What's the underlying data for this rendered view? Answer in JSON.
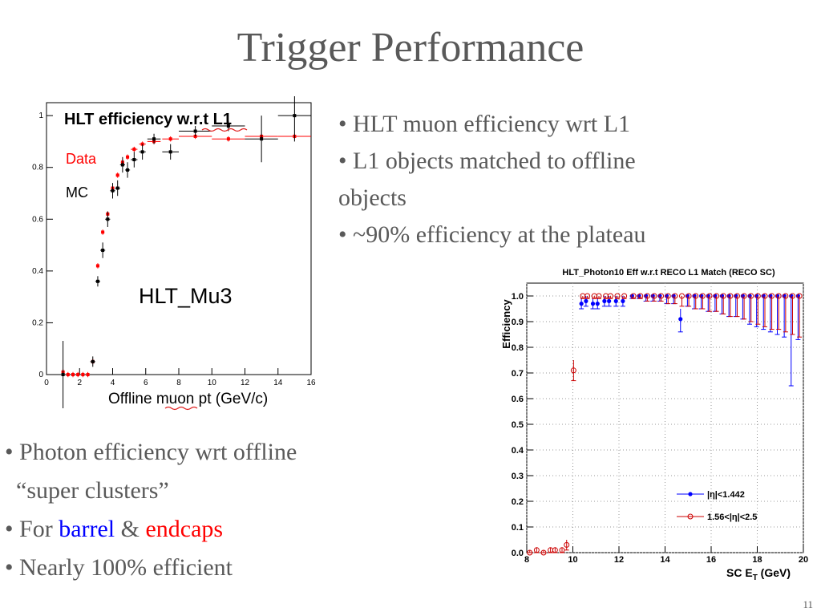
{
  "slide": {
    "title": "Trigger Performance",
    "page_number": "11",
    "bullets_top": [
      "• HLT muon efficiency wrt L1",
      "• L1 objects matched to offline",
      "objects",
      "• ~90% efficiency at the plateau"
    ],
    "bullets_bottom": {
      "line1": "• Photon efficiency wrt offline",
      "line2": "“super clusters”",
      "line3_prefix": "• For ",
      "line3_barrel": "barrel",
      "line3_amp": " & ",
      "line3_endcaps": "endcaps",
      "line4": "• Nearly 100% efficient"
    }
  },
  "chart_data": [
    {
      "type": "scatter",
      "title": "HLT efficiency w.r.t L1",
      "annotation": "HLT_Mu3",
      "xlabel": "Offline muon pt (GeV/c)",
      "ylabel": "",
      "xlim": [
        0,
        16
      ],
      "ylim": [
        0,
        1.05
      ],
      "xticks": [
        0,
        2,
        4,
        6,
        8,
        10,
        12,
        14,
        16
      ],
      "yticks": [
        0,
        0.2,
        0.4,
        0.6,
        0.8,
        1
      ],
      "legend_position": "top-left",
      "colors": {
        "data": "#ff0000",
        "mc": "#000000"
      },
      "series": [
        {
          "name": "Data",
          "points": [
            {
              "x": 1.0,
              "y": 0.01,
              "ex": 0.1,
              "ey": 0.01
            },
            {
              "x": 1.3,
              "y": 0.0,
              "ex": 0.1,
              "ey": 0.01
            },
            {
              "x": 1.6,
              "y": 0.0,
              "ex": 0.1,
              "ey": 0.01
            },
            {
              "x": 1.9,
              "y": 0.0,
              "ex": 0.1,
              "ey": 0.01
            },
            {
              "x": 2.2,
              "y": 0.0,
              "ex": 0.1,
              "ey": 0.01
            },
            {
              "x": 2.5,
              "y": 0.0,
              "ex": 0.1,
              "ey": 0.01
            },
            {
              "x": 2.8,
              "y": 0.05,
              "ex": 0.1,
              "ey": 0.01
            },
            {
              "x": 3.1,
              "y": 0.42,
              "ex": 0.1,
              "ey": 0.01
            },
            {
              "x": 3.4,
              "y": 0.55,
              "ex": 0.1,
              "ey": 0.01
            },
            {
              "x": 3.7,
              "y": 0.62,
              "ex": 0.1,
              "ey": 0.01
            },
            {
              "x": 4.0,
              "y": 0.72,
              "ex": 0.1,
              "ey": 0.01
            },
            {
              "x": 4.3,
              "y": 0.77,
              "ex": 0.1,
              "ey": 0.01
            },
            {
              "x": 4.6,
              "y": 0.82,
              "ex": 0.1,
              "ey": 0.01
            },
            {
              "x": 4.9,
              "y": 0.84,
              "ex": 0.1,
              "ey": 0.01
            },
            {
              "x": 5.3,
              "y": 0.87,
              "ex": 0.2,
              "ey": 0.01
            },
            {
              "x": 5.8,
              "y": 0.89,
              "ex": 0.2,
              "ey": 0.01
            },
            {
              "x": 6.5,
              "y": 0.9,
              "ex": 0.4,
              "ey": 0.01
            },
            {
              "x": 7.5,
              "y": 0.91,
              "ex": 0.5,
              "ey": 0.01
            },
            {
              "x": 9.0,
              "y": 0.92,
              "ex": 1.0,
              "ey": 0.01
            },
            {
              "x": 11.0,
              "y": 0.91,
              "ex": 1.0,
              "ey": 0.01
            },
            {
              "x": 13.0,
              "y": 0.92,
              "ex": 1.0,
              "ey": 0.01
            },
            {
              "x": 15.0,
              "y": 0.92,
              "ex": 1.0,
              "ey": 0.01
            }
          ]
        },
        {
          "name": "MC",
          "points": [
            {
              "x": 1.0,
              "y": 0.0,
              "ex": 0.15,
              "ey": 0.13
            },
            {
              "x": 2.8,
              "y": 0.05,
              "ex": 0.15,
              "ey": 0.02
            },
            {
              "x": 3.1,
              "y": 0.36,
              "ex": 0.15,
              "ey": 0.02
            },
            {
              "x": 3.4,
              "y": 0.48,
              "ex": 0.15,
              "ey": 0.03
            },
            {
              "x": 3.7,
              "y": 0.6,
              "ex": 0.15,
              "ey": 0.03
            },
            {
              "x": 4.0,
              "y": 0.71,
              "ex": 0.15,
              "ey": 0.03
            },
            {
              "x": 4.3,
              "y": 0.72,
              "ex": 0.15,
              "ey": 0.03
            },
            {
              "x": 4.6,
              "y": 0.81,
              "ex": 0.15,
              "ey": 0.03
            },
            {
              "x": 4.9,
              "y": 0.79,
              "ex": 0.15,
              "ey": 0.03
            },
            {
              "x": 5.3,
              "y": 0.83,
              "ex": 0.2,
              "ey": 0.03
            },
            {
              "x": 5.8,
              "y": 0.86,
              "ex": 0.2,
              "ey": 0.03
            },
            {
              "x": 6.5,
              "y": 0.91,
              "ex": 0.4,
              "ey": 0.02
            },
            {
              "x": 7.5,
              "y": 0.86,
              "ex": 0.5,
              "ey": 0.03
            },
            {
              "x": 9.0,
              "y": 0.94,
              "ex": 1.0,
              "ey": 0.02
            },
            {
              "x": 11.0,
              "y": 0.96,
              "ex": 1.0,
              "ey": 0.02
            },
            {
              "x": 13.0,
              "y": 0.91,
              "ex": 1.0,
              "ey": 0.09
            },
            {
              "x": 15.0,
              "y": 1.0,
              "ex": 1.0,
              "ey": 0.1
            }
          ]
        }
      ]
    },
    {
      "type": "scatter",
      "title": "HLT_Photon10 Eff w.r.t RECO L1 Match (RECO SC)",
      "xlabel": "SC E_T (GeV)",
      "ylabel": "Efficiency",
      "xlim": [
        8,
        20
      ],
      "ylim": [
        0,
        1.05
      ],
      "xticks": [
        8,
        10,
        12,
        14,
        16,
        18,
        20
      ],
      "yticks": [
        0,
        0.1,
        0.2,
        0.3,
        0.4,
        0.5,
        0.6,
        0.7,
        0.8,
        0.9,
        1.0
      ],
      "ytick_labels": [
        "0.0",
        "0.1",
        "0.2",
        "0.3",
        "0.4",
        "0.5",
        "0.6",
        "0.7",
        "0.8",
        "0.9",
        "1.0"
      ],
      "grid": true,
      "legend_position": "bottom-right",
      "colors": {
        "barrel": "#0000ff",
        "endcaps": "#cc0000"
      },
      "series": [
        {
          "name": "|η|<1.442",
          "points": [
            {
              "x": 10.4,
              "y": 0.97,
              "eyl": 0.02,
              "eyh": 0.02
            },
            {
              "x": 10.6,
              "y": 0.98,
              "eyl": 0.02,
              "eyh": 0.02
            },
            {
              "x": 10.9,
              "y": 0.97,
              "eyl": 0.02,
              "eyh": 0.02
            },
            {
              "x": 11.1,
              "y": 0.97,
              "eyl": 0.02,
              "eyh": 0.02
            },
            {
              "x": 11.4,
              "y": 0.98,
              "eyl": 0.02,
              "eyh": 0.02
            },
            {
              "x": 11.6,
              "y": 0.98,
              "eyl": 0.02,
              "eyh": 0.02
            },
            {
              "x": 11.9,
              "y": 0.98,
              "eyl": 0.02,
              "eyh": 0.02
            },
            {
              "x": 12.2,
              "y": 0.98,
              "eyl": 0.02,
              "eyh": 0.02
            },
            {
              "x": 12.6,
              "y": 1.0,
              "eyl": 0.01,
              "eyh": 0.0
            },
            {
              "x": 12.9,
              "y": 1.0,
              "eyl": 0.01,
              "eyh": 0.0
            },
            {
              "x": 13.2,
              "y": 1.0,
              "eyl": 0.02,
              "eyh": 0.0
            },
            {
              "x": 13.5,
              "y": 1.0,
              "eyl": 0.02,
              "eyh": 0.0
            },
            {
              "x": 13.8,
              "y": 1.0,
              "eyl": 0.02,
              "eyh": 0.0
            },
            {
              "x": 14.1,
              "y": 1.0,
              "eyl": 0.03,
              "eyh": 0.0
            },
            {
              "x": 14.4,
              "y": 1.0,
              "eyl": 0.03,
              "eyh": 0.0
            },
            {
              "x": 14.7,
              "y": 0.91,
              "eyl": 0.05,
              "eyh": 0.04
            },
            {
              "x": 15.0,
              "y": 1.0,
              "eyl": 0.04,
              "eyh": 0.0
            },
            {
              "x": 15.3,
              "y": 1.0,
              "eyl": 0.05,
              "eyh": 0.0
            },
            {
              "x": 15.6,
              "y": 1.0,
              "eyl": 0.05,
              "eyh": 0.0
            },
            {
              "x": 15.9,
              "y": 1.0,
              "eyl": 0.06,
              "eyh": 0.0
            },
            {
              "x": 16.2,
              "y": 1.0,
              "eyl": 0.06,
              "eyh": 0.0
            },
            {
              "x": 16.5,
              "y": 1.0,
              "eyl": 0.07,
              "eyh": 0.0
            },
            {
              "x": 16.8,
              "y": 1.0,
              "eyl": 0.08,
              "eyh": 0.0
            },
            {
              "x": 17.1,
              "y": 1.0,
              "eyl": 0.08,
              "eyh": 0.0
            },
            {
              "x": 17.4,
              "y": 1.0,
              "eyl": 0.09,
              "eyh": 0.0
            },
            {
              "x": 17.7,
              "y": 1.0,
              "eyl": 0.11,
              "eyh": 0.0
            },
            {
              "x": 18.0,
              "y": 1.0,
              "eyl": 0.12,
              "eyh": 0.0
            },
            {
              "x": 18.3,
              "y": 1.0,
              "eyl": 0.13,
              "eyh": 0.0
            },
            {
              "x": 18.6,
              "y": 1.0,
              "eyl": 0.14,
              "eyh": 0.0
            },
            {
              "x": 18.9,
              "y": 1.0,
              "eyl": 0.15,
              "eyh": 0.0
            },
            {
              "x": 19.2,
              "y": 1.0,
              "eyl": 0.16,
              "eyh": 0.0
            },
            {
              "x": 19.5,
              "y": 1.0,
              "eyl": 0.35,
              "eyh": 0.0
            },
            {
              "x": 19.8,
              "y": 1.0,
              "eyl": 0.17,
              "eyh": 0.0
            }
          ]
        },
        {
          "name": "1.56<|η|<2.5",
          "points": [
            {
              "x": 8.1,
              "y": 0.0,
              "eyl": 0.0,
              "eyh": 0.01
            },
            {
              "x": 8.4,
              "y": 0.01,
              "eyl": 0.01,
              "eyh": 0.01
            },
            {
              "x": 8.7,
              "y": 0.0,
              "eyl": 0.0,
              "eyh": 0.01
            },
            {
              "x": 9.0,
              "y": 0.01,
              "eyl": 0.01,
              "eyh": 0.01
            },
            {
              "x": 9.2,
              "y": 0.01,
              "eyl": 0.01,
              "eyh": 0.01
            },
            {
              "x": 9.5,
              "y": 0.01,
              "eyl": 0.01,
              "eyh": 0.01
            },
            {
              "x": 9.7,
              "y": 0.03,
              "eyl": 0.02,
              "eyh": 0.02
            },
            {
              "x": 10.0,
              "y": 0.71,
              "eyl": 0.04,
              "eyh": 0.04
            },
            {
              "x": 10.4,
              "y": 1.0,
              "eyl": 0.01,
              "eyh": 0.0
            },
            {
              "x": 10.6,
              "y": 1.0,
              "eyl": 0.01,
              "eyh": 0.0
            },
            {
              "x": 10.9,
              "y": 1.0,
              "eyl": 0.01,
              "eyh": 0.0
            },
            {
              "x": 11.1,
              "y": 1.0,
              "eyl": 0.01,
              "eyh": 0.0
            },
            {
              "x": 11.4,
              "y": 1.0,
              "eyl": 0.01,
              "eyh": 0.0
            },
            {
              "x": 11.6,
              "y": 1.0,
              "eyl": 0.01,
              "eyh": 0.0
            },
            {
              "x": 11.9,
              "y": 1.0,
              "eyl": 0.01,
              "eyh": 0.0
            },
            {
              "x": 12.2,
              "y": 1.0,
              "eyl": 0.01,
              "eyh": 0.0
            },
            {
              "x": 12.6,
              "y": 1.0,
              "eyl": 0.01,
              "eyh": 0.0
            },
            {
              "x": 12.9,
              "y": 1.0,
              "eyl": 0.01,
              "eyh": 0.0
            },
            {
              "x": 13.2,
              "y": 1.0,
              "eyl": 0.02,
              "eyh": 0.0
            },
            {
              "x": 13.5,
              "y": 1.0,
              "eyl": 0.02,
              "eyh": 0.0
            },
            {
              "x": 13.8,
              "y": 1.0,
              "eyl": 0.02,
              "eyh": 0.0
            },
            {
              "x": 14.1,
              "y": 1.0,
              "eyl": 0.03,
              "eyh": 0.0
            },
            {
              "x": 14.4,
              "y": 1.0,
              "eyl": 0.03,
              "eyh": 0.0
            },
            {
              "x": 14.7,
              "y": 1.0,
              "eyl": 0.04,
              "eyh": 0.0
            },
            {
              "x": 15.0,
              "y": 1.0,
              "eyl": 0.04,
              "eyh": 0.0
            },
            {
              "x": 15.3,
              "y": 1.0,
              "eyl": 0.05,
              "eyh": 0.0
            },
            {
              "x": 15.6,
              "y": 1.0,
              "eyl": 0.05,
              "eyh": 0.0
            },
            {
              "x": 15.9,
              "y": 1.0,
              "eyl": 0.06,
              "eyh": 0.0
            },
            {
              "x": 16.2,
              "y": 1.0,
              "eyl": 0.06,
              "eyh": 0.0
            },
            {
              "x": 16.5,
              "y": 1.0,
              "eyl": 0.07,
              "eyh": 0.0
            },
            {
              "x": 16.8,
              "y": 1.0,
              "eyl": 0.08,
              "eyh": 0.0
            },
            {
              "x": 17.1,
              "y": 1.0,
              "eyl": 0.08,
              "eyh": 0.0
            },
            {
              "x": 17.4,
              "y": 1.0,
              "eyl": 0.09,
              "eyh": 0.0
            },
            {
              "x": 17.7,
              "y": 1.0,
              "eyl": 0.1,
              "eyh": 0.0
            },
            {
              "x": 18.0,
              "y": 1.0,
              "eyl": 0.11,
              "eyh": 0.0
            },
            {
              "x": 18.3,
              "y": 1.0,
              "eyl": 0.12,
              "eyh": 0.0
            },
            {
              "x": 18.6,
              "y": 1.0,
              "eyl": 0.13,
              "eyh": 0.0
            },
            {
              "x": 18.9,
              "y": 1.0,
              "eyl": 0.13,
              "eyh": 0.0
            },
            {
              "x": 19.2,
              "y": 1.0,
              "eyl": 0.14,
              "eyh": 0.0
            },
            {
              "x": 19.5,
              "y": 1.0,
              "eyl": 0.15,
              "eyh": 0.0
            },
            {
              "x": 19.8,
              "y": 1.0,
              "eyl": 0.16,
              "eyh": 0.0
            }
          ]
        }
      ]
    }
  ]
}
